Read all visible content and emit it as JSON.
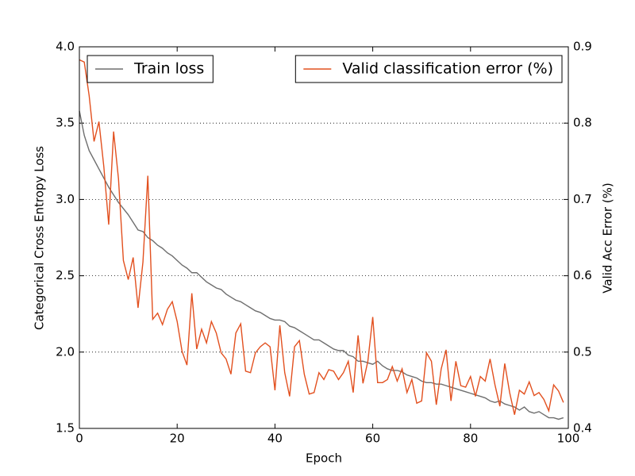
{
  "chart_data": {
    "type": "line",
    "xlabel": "Epoch",
    "ylabel": "Categorical Cross Entropy Loss",
    "y2label": "Valid Acc Error (%)",
    "x": [
      0,
      1,
      2,
      3,
      4,
      5,
      6,
      7,
      8,
      9,
      10,
      11,
      12,
      13,
      14,
      15,
      16,
      17,
      18,
      19,
      20,
      21,
      22,
      23,
      24,
      25,
      26,
      27,
      28,
      29,
      30,
      31,
      32,
      33,
      34,
      35,
      36,
      37,
      38,
      39,
      40,
      41,
      42,
      43,
      44,
      45,
      46,
      47,
      48,
      49,
      50,
      51,
      52,
      53,
      54,
      55,
      56,
      57,
      58,
      59,
      60,
      61,
      62,
      63,
      64,
      65,
      66,
      67,
      68,
      69,
      70,
      71,
      72,
      73,
      74,
      75,
      76,
      77,
      78,
      79,
      80,
      81,
      82,
      83,
      84,
      85,
      86,
      87,
      88,
      89,
      90,
      91,
      92,
      93,
      94,
      95,
      96,
      97,
      98,
      99
    ],
    "xlim": [
      0,
      100
    ],
    "xticks": [
      0,
      20,
      40,
      60,
      80,
      100
    ],
    "ylim": [
      1.5,
      4
    ],
    "yticks": [
      1.5,
      {
        "value": 2,
        "label": "2.0"
      },
      2.5,
      {
        "value": 3,
        "label": "3.0"
      },
      3.5,
      {
        "value": 4,
        "label": "4.0"
      }
    ],
    "y2lim": [
      0.4,
      0.9
    ],
    "y2ticks": [
      0.4,
      0.5,
      0.6,
      0.7,
      0.8,
      0.9
    ],
    "grid": true,
    "series": [
      {
        "name": "Train loss",
        "color": "#6e6e6e",
        "axis": "y",
        "legend": "upper left",
        "values": [
          3.58,
          3.42,
          3.32,
          3.26,
          3.2,
          3.14,
          3.08,
          3.03,
          2.98,
          2.94,
          2.9,
          2.85,
          2.8,
          2.79,
          2.75,
          2.73,
          2.7,
          2.68,
          2.65,
          2.63,
          2.6,
          2.57,
          2.55,
          2.52,
          2.52,
          2.49,
          2.46,
          2.44,
          2.42,
          2.41,
          2.38,
          2.36,
          2.34,
          2.33,
          2.31,
          2.29,
          2.27,
          2.26,
          2.24,
          2.22,
          2.21,
          2.21,
          2.2,
          2.17,
          2.16,
          2.14,
          2.12,
          2.1,
          2.08,
          2.08,
          2.06,
          2.04,
          2.02,
          2.01,
          2.01,
          1.98,
          1.97,
          1.94,
          1.94,
          1.93,
          1.92,
          1.94,
          1.91,
          1.89,
          1.88,
          1.88,
          1.87,
          1.85,
          1.84,
          1.83,
          1.81,
          1.8,
          1.8,
          1.79,
          1.79,
          1.78,
          1.77,
          1.76,
          1.75,
          1.74,
          1.73,
          1.72,
          1.71,
          1.7,
          1.68,
          1.67,
          1.68,
          1.66,
          1.65,
          1.64,
          1.62,
          1.64,
          1.61,
          1.6,
          1.61,
          1.59,
          1.57,
          1.57,
          1.56,
          1.57
        ]
      },
      {
        "name": "Valid classification error (%)",
        "color": "#e2501f",
        "axis": "y2",
        "legend": "upper right",
        "values": [
          0.883,
          0.88,
          0.836,
          0.776,
          0.802,
          0.743,
          0.667,
          0.789,
          0.727,
          0.62,
          0.595,
          0.624,
          0.558,
          0.618,
          0.731,
          0.543,
          0.551,
          0.536,
          0.556,
          0.566,
          0.54,
          0.501,
          0.483,
          0.577,
          0.504,
          0.53,
          0.512,
          0.54,
          0.525,
          0.499,
          0.491,
          0.471,
          0.525,
          0.537,
          0.475,
          0.473,
          0.499,
          0.507,
          0.512,
          0.507,
          0.45,
          0.535,
          0.473,
          0.442,
          0.507,
          0.515,
          0.471,
          0.445,
          0.447,
          0.473,
          0.464,
          0.477,
          0.475,
          0.464,
          0.473,
          0.488,
          0.447,
          0.522,
          0.459,
          0.488,
          0.546,
          0.46,
          0.46,
          0.464,
          0.481,
          0.462,
          0.478,
          0.447,
          0.464,
          0.433,
          0.436,
          0.499,
          0.488,
          0.431,
          0.478,
          0.503,
          0.436,
          0.488,
          0.456,
          0.454,
          0.468,
          0.442,
          0.468,
          0.462,
          0.491,
          0.457,
          0.429,
          0.485,
          0.447,
          0.418,
          0.45,
          0.445,
          0.461,
          0.443,
          0.447,
          0.438,
          0.423,
          0.457,
          0.449,
          0.434
        ]
      }
    ]
  }
}
